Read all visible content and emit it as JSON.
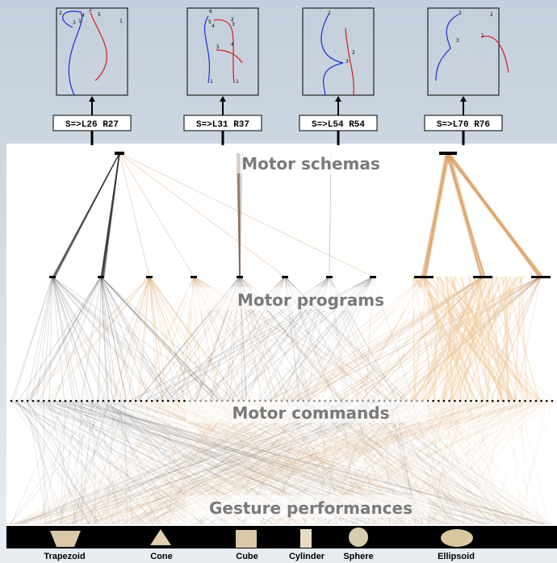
{
  "schemas": [
    {
      "code": "S=>L26 R27",
      "labels": [
        "2",
        "4",
        "3",
        "1",
        "2",
        "5",
        "1"
      ]
    },
    {
      "code": "S=>L31 R37",
      "labels": [
        "6",
        "4",
        "5",
        "2",
        "3",
        "5",
        "4",
        "1",
        "1"
      ]
    },
    {
      "code": "S=>L54 R54",
      "labels": [
        "2",
        "3",
        "2"
      ]
    },
    {
      "code": "S=>L70 R76",
      "labels": [
        "2",
        "2",
        "3",
        "1"
      ]
    }
  ],
  "layers": [
    "Motor schemas",
    "Motor programs",
    "Motor commands",
    "Gesture performances"
  ],
  "objects": [
    "Trapezoid",
    "Cone",
    "Cube",
    "Cylinder",
    "Sphere",
    "Ellipsoid"
  ]
}
